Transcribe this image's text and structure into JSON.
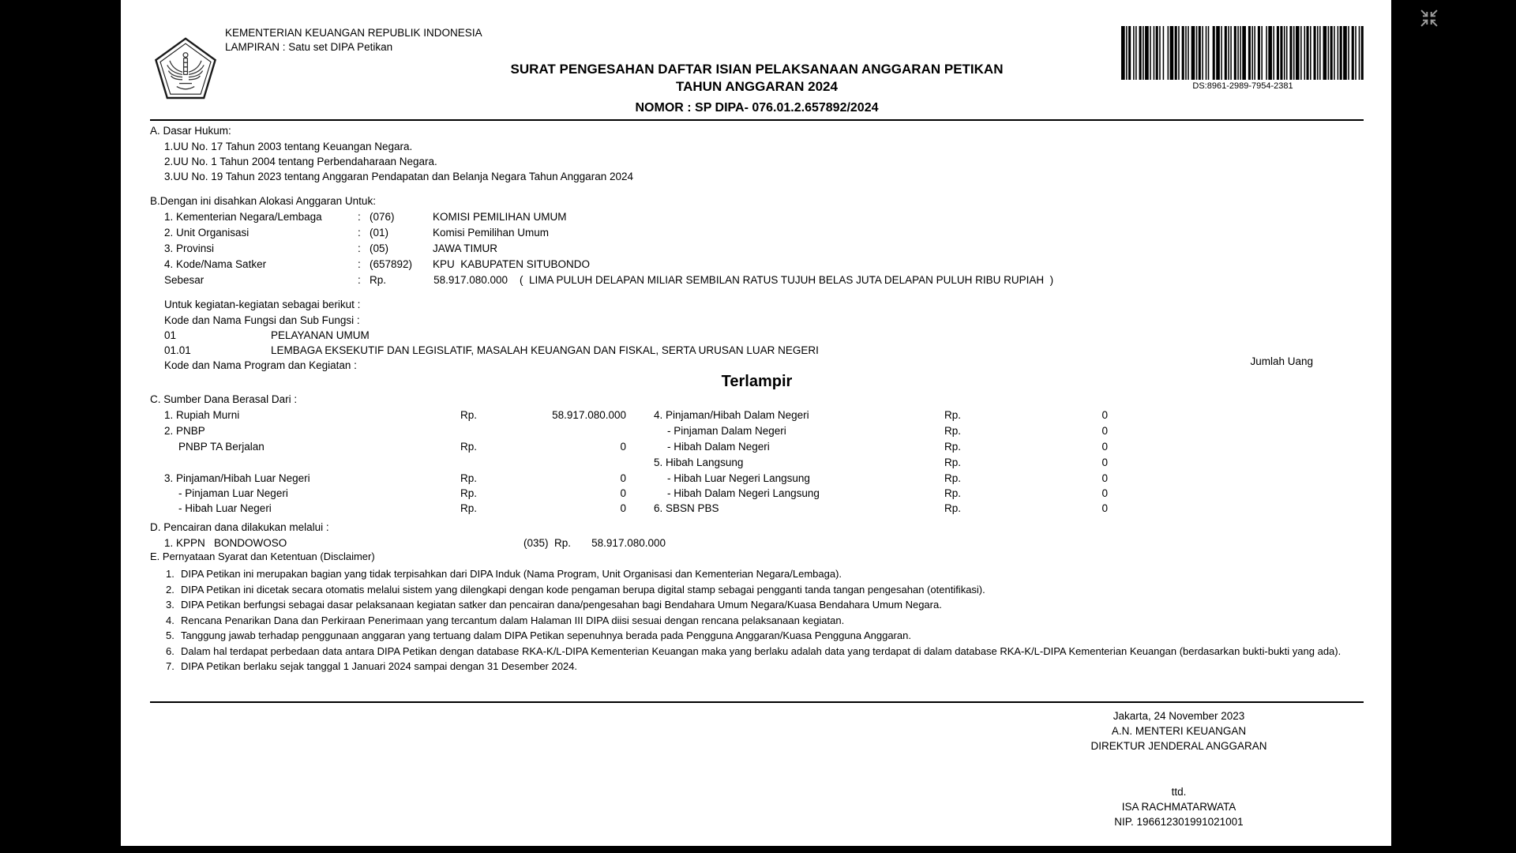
{
  "window": {
    "exit_fullscreen_tooltip": "Exit full screen"
  },
  "header": {
    "ministry_line1": "KEMENTERIAN KEUANGAN REPUBLIK INDONESIA",
    "ministry_line2": "LAMPIRAN : Satu set DIPA Petikan",
    "title_line1": "SURAT PENGESAHAN DAFTAR ISIAN PELAKSANAAN ANGGARAN PETIKAN",
    "title_line2": "TAHUN ANGGARAN 2024",
    "nomor": "NOMOR : SP DIPA- 076.01.2.657892/2024",
    "barcode_label": "DS:8961-2989-7954-2381",
    "logo_name": "kementerian-keuangan-pentagon-emblem"
  },
  "section_a": {
    "heading": "A. Dasar Hukum:",
    "items": [
      "1.UU No. 17 Tahun 2003 tentang Keuangan Negara.",
      "2.UU No. 1 Tahun 2004 tentang Perbendaharaan Negara.",
      "3.UU No. 19 Tahun 2023 tentang Anggaran Pendapatan dan Belanja Negara Tahun Anggaran 2024"
    ]
  },
  "section_b": {
    "heading": "B.Dengan ini disahkan Alokasi Anggaran Untuk:",
    "rows": [
      {
        "label": "1. Kementerian Negara/Lembaga",
        "sep": ":",
        "code": "(076)",
        "value": "KOMISI PEMILIHAN UMUM"
      },
      {
        "label": "2. Unit Organisasi",
        "sep": ":",
        "code": "(01)",
        "value": "Komisi Pemilihan Umum"
      },
      {
        "label": "3. Provinsi",
        "sep": ":",
        "code": "(05)",
        "value": "JAWA TIMUR"
      },
      {
        "label": "4. Kode/Nama Satker",
        "sep": ":",
        "code": "(657892)",
        "value": "KPU  KABUPATEN SITUBONDO"
      }
    ],
    "sebesar": {
      "label": "Sebesar",
      "sep": ":",
      "currency": "Rp.",
      "amount": "58.917.080.000",
      "amount_words": "(  LIMA PULUH DELAPAN MILIAR SEMBILAN RATUS TUJUH BELAS JUTA DELAPAN PULUH RIBU RUPIAH  )"
    }
  },
  "kegiatan": {
    "line1": "Untuk kegiatan-kegiatan sebagai berikut :",
    "line2": "Kode dan Nama Fungsi dan Sub Fungsi :",
    "fungsi_rows": [
      {
        "code": "01",
        "name": "PELAYANAN UMUM"
      },
      {
        "code": "01.01",
        "name": "LEMBAGA EKSEKUTIF DAN LEGISLATIF, MASALAH KEUANGAN DAN FISKAL, SERTA URUSAN LUAR NEGERI"
      }
    ],
    "line3": "Kode dan Nama Program dan Kegiatan :",
    "jumlah_uang": "Jumlah Uang",
    "terlampir": "Terlampir"
  },
  "section_c": {
    "heading": "C. Sumber Dana Berasal Dari :",
    "left_rows": [
      {
        "label": "1. Rupiah Murni",
        "rp": "Rp.",
        "value": "58.917.080.000"
      },
      {
        "label": "2. PNBP",
        "rp": "",
        "value": ""
      },
      {
        "label": "PNBP TA Berjalan",
        "rp": "Rp.",
        "value": "0"
      },
      {
        "label": "3. Pinjaman/Hibah Luar Negeri",
        "rp": "Rp.",
        "value": "0"
      },
      {
        "label": "- Pinjaman Luar Negeri",
        "rp": "Rp.",
        "value": "0"
      },
      {
        "label": "- Hibah Luar Negeri",
        "rp": "Rp.",
        "value": "0"
      }
    ],
    "right_rows": [
      {
        "label": "4. Pinjaman/Hibah Dalam Negeri",
        "rp": "Rp.",
        "value": "0"
      },
      {
        "label": "- Pinjaman Dalam Negeri",
        "rp": "Rp.",
        "value": "0"
      },
      {
        "label": "- Hibah Dalam Negeri",
        "rp": "Rp.",
        "value": "0"
      },
      {
        "label": "5. Hibah Langsung",
        "rp": "Rp.",
        "value": "0"
      },
      {
        "label": "- Hibah Luar Negeri Langsung",
        "rp": "Rp.",
        "value": "0"
      },
      {
        "label": "- Hibah Dalam Negeri Langsung",
        "rp": "Rp.",
        "value": "0"
      },
      {
        "label": "6. SBSN PBS",
        "rp": "Rp.",
        "value": "0"
      }
    ]
  },
  "section_d": {
    "heading": "D. Pencairan dana dilakukan melalui :",
    "row": {
      "label": "1. KPPN   BONDOWOSO",
      "code": "(035)  Rp.",
      "value": "58.917.080.000"
    }
  },
  "section_e": {
    "heading": "E. Pernyataan Syarat dan Ketentuan (Disclaimer)",
    "items": [
      {
        "num": "1.",
        "text": "DIPA Petikan ini merupakan bagian yang tidak terpisahkan dari DIPA Induk (Nama Program, Unit Organisasi dan Kementerian Negara/Lembaga)."
      },
      {
        "num": "2.",
        "text": "DIPA Petikan ini dicetak secara otomatis melalui sistem yang dilengkapi dengan kode pengaman berupa digital stamp sebagai pengganti tanda tangan pengesahan (otentifikasi)."
      },
      {
        "num": "3.",
        "text": "DIPA Petikan berfungsi sebagai dasar pelaksanaan kegiatan satker dan pencairan dana/pengesahan bagi Bendahara Umum Negara/Kuasa Bendahara Umum Negara."
      },
      {
        "num": "4.",
        "text": "Rencana Penarikan Dana dan Perkiraan Penerimaan yang tercantum dalam Halaman III DIPA diisi sesuai dengan rencana pelaksanaan kegiatan."
      },
      {
        "num": "5.",
        "text": "Tanggung jawab terhadap penggunaan anggaran yang tertuang dalam DIPA Petikan sepenuhnya berada pada Pengguna Anggaran/Kuasa Pengguna Anggaran."
      },
      {
        "num": "6.",
        "text": "Dalam hal terdapat perbedaan data antara DIPA Petikan dengan database RKA-K/L-DIPA Kementerian Keuangan maka yang berlaku adalah data yang terdapat di dalam database RKA-K/L-DIPA Kementerian Keuangan (berdasarkan bukti-bukti yang ada)."
      },
      {
        "num": "7.",
        "text": "DIPA Petikan berlaku sejak tanggal 1 Januari 2024 sampai dengan 31 Desember 2024."
      }
    ]
  },
  "signature": {
    "place_date": "Jakarta, 24 November 2023",
    "on_behalf": "A.N. MENTERI KEUANGAN",
    "title": "DIREKTUR JENDERAL ANGGARAN",
    "ttd": "ttd.",
    "name": "ISA RACHMATARWATA",
    "nip": "NIP. 196612301991021001"
  },
  "colors": {
    "page_bg": "#ffffff",
    "canvas_bg": "#000000",
    "text": "#000000",
    "fullscreen_icon": "#9e9e9e"
  }
}
